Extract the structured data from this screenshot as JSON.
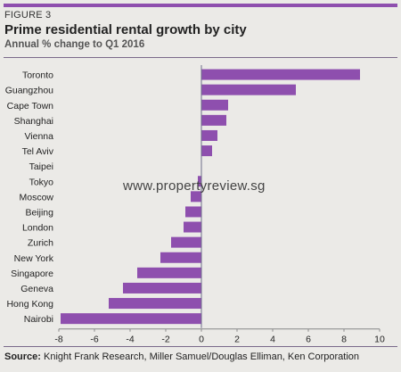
{
  "colors": {
    "accent": "#8e4fae",
    "bar": "#8e4fae",
    "bg": "#ebeae7"
  },
  "figure_label": "FIGURE 3",
  "source_label": "Source:",
  "source_text": "Knight Frank Research, Miller Samuel/Douglas Elliman, Ken Corporation",
  "watermark": "www.propertyreview.sg",
  "chart_data": {
    "type": "bar",
    "orientation": "horizontal",
    "title": "Prime residential rental growth by city",
    "subtitle": "Annual % change to Q1 2016",
    "categories": [
      "Toronto",
      "Guangzhou",
      "Cape Town",
      "Shanghai",
      "Vienna",
      "Tel Aviv",
      "Taipei",
      "Tokyo",
      "Moscow",
      "Beijing",
      "London",
      "Zurich",
      "New York",
      "Singapore",
      "Geneva",
      "Hong Kong",
      "Nairobi"
    ],
    "values": [
      8.9,
      5.3,
      1.5,
      1.4,
      0.9,
      0.6,
      0.0,
      -0.2,
      -0.6,
      -0.9,
      -1.0,
      -1.7,
      -2.3,
      -3.6,
      -4.4,
      -5.2,
      -7.9
    ],
    "xlim": [
      -8,
      10
    ],
    "xticks": [
      -8,
      -6,
      -4,
      -2,
      0,
      2,
      4,
      6,
      8,
      10
    ],
    "grid": false
  }
}
